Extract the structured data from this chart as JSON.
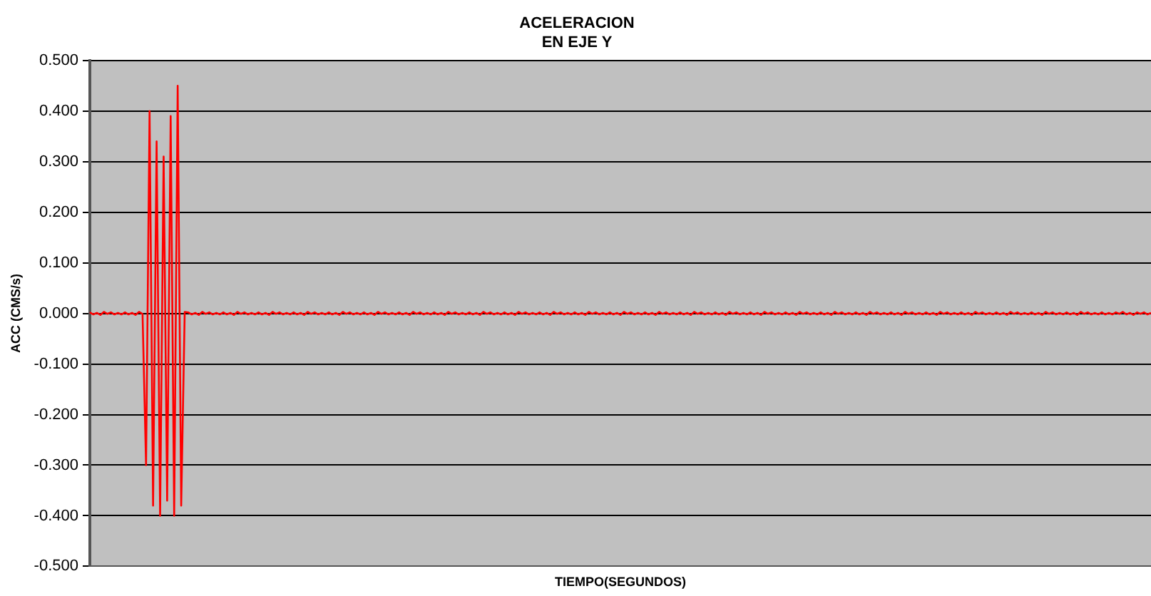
{
  "chart_data": {
    "type": "line",
    "title": "ACELERACION\nEN EJE Y",
    "xlabel": "TIEMPO(SEGUNDOS)",
    "ylabel": "ACC (CMS/s)",
    "categories": [
      null,
      null,
      null,
      null,
      null,
      null,
      null,
      null,
      null,
      null,
      null,
      null,
      null,
      null,
      null,
      null,
      null,
      null,
      null,
      null,
      null,
      null,
      null,
      null,
      null,
      null,
      null,
      null,
      null,
      null,
      null,
      null,
      null,
      null,
      null,
      null,
      null,
      null,
      null,
      null,
      null,
      null,
      null,
      null,
      null,
      null,
      null,
      null,
      null,
      null,
      null,
      null,
      null,
      null,
      null,
      null,
      null,
      null,
      null,
      null,
      null,
      null,
      null,
      null,
      null,
      null,
      null,
      null,
      null,
      null,
      null,
      null,
      null,
      null,
      null,
      null,
      null,
      null,
      null,
      null,
      null,
      null,
      null,
      null,
      null,
      null,
      null,
      null,
      null,
      null,
      null,
      null,
      null,
      null,
      null,
      null,
      null,
      null,
      null,
      null,
      null,
      null,
      null,
      null,
      null,
      null,
      null,
      null,
      null,
      null,
      null,
      null,
      null,
      null,
      null,
      null,
      null,
      null,
      null,
      null,
      null,
      null,
      null,
      null,
      null,
      null,
      null,
      null,
      null,
      null,
      null,
      null,
      null,
      null,
      null,
      null,
      null,
      null,
      null,
      null,
      null,
      null,
      null,
      null,
      null,
      null,
      null,
      null,
      null,
      null,
      null,
      null,
      null,
      null,
      null,
      null,
      null,
      null,
      null,
      null,
      null,
      null,
      null,
      null,
      null,
      null,
      null,
      null,
      null,
      null,
      null,
      null,
      null,
      null,
      null,
      null,
      null,
      null,
      null,
      null,
      null,
      null,
      null,
      null,
      null,
      null,
      null,
      null,
      null,
      null,
      null,
      null,
      null,
      null,
      null,
      null,
      null,
      null,
      null,
      null,
      null,
      null,
      null,
      null,
      null,
      null,
      null,
      null,
      null,
      null,
      null,
      null,
      null,
      null,
      null,
      null,
      null,
      null,
      null,
      null,
      null,
      null,
      null,
      null,
      null,
      null,
      null,
      null,
      null,
      null,
      null,
      null,
      null,
      null,
      null,
      null,
      null,
      null,
      null,
      null,
      null,
      null,
      null,
      null,
      null,
      null,
      null,
      null,
      null,
      null,
      null,
      null,
      null,
      null,
      null,
      null,
      null,
      null,
      null,
      null,
      null,
      null,
      null,
      null,
      null,
      null,
      null,
      null,
      null,
      null,
      null,
      null,
      null,
      null,
      null,
      null,
      null,
      null,
      null,
      null,
      null,
      null,
      null,
      null,
      null,
      null,
      null,
      null,
      null,
      null,
      null,
      null,
      null,
      null,
      null,
      null,
      null,
      null,
      null,
      null,
      null,
      null,
      null
    ],
    "series": [
      {
        "color": "#ff0000",
        "values": [
          0.002,
          -0.002,
          0.001,
          -0.003,
          0.003,
          -0.001,
          0.002,
          -0.002,
          0.001,
          -0.002,
          0.002,
          -0.002,
          0.001,
          -0.003,
          0.003,
          -0.001,
          -0.3,
          0.4,
          -0.38,
          0.34,
          -0.4,
          0.31,
          -0.37,
          0.39,
          -0.4,
          0.45,
          -0.38,
          0.003,
          0.002,
          -0.002,
          0.001,
          -0.003,
          0.003,
          -0.001,
          0.002,
          -0.002,
          0.001,
          -0.002,
          0.002,
          -0.002,
          0.001,
          -0.003,
          0.003,
          -0.001,
          0.002,
          -0.002,
          0.001,
          -0.002,
          0.002,
          -0.002,
          0.001,
          -0.003,
          0.003,
          -0.001,
          0.002,
          -0.002,
          0.001,
          -0.002,
          0.002,
          -0.002,
          0.001,
          -0.003,
          0.003,
          -0.001,
          0.002,
          -0.002,
          0.001,
          -0.002,
          0.002,
          -0.002,
          0.001,
          -0.003,
          0.003,
          -0.001,
          0.002,
          -0.002,
          0.001,
          -0.002,
          0.002,
          -0.002,
          0.001,
          -0.003,
          0.003,
          -0.001,
          0.002,
          -0.002,
          0.001,
          -0.002,
          0.002,
          -0.002,
          0.001,
          -0.003,
          0.003,
          -0.001,
          0.002,
          -0.002,
          0.001,
          -0.002,
          0.002,
          -0.002,
          0.001,
          -0.003,
          0.003,
          -0.001,
          0.002,
          -0.002,
          0.001,
          -0.002,
          0.002,
          -0.002,
          0.001,
          -0.003,
          0.003,
          -0.001,
          0.002,
          -0.002,
          0.001,
          -0.002,
          0.002,
          -0.002,
          0.001,
          -0.003,
          0.003,
          -0.001,
          0.002,
          -0.002,
          0.001,
          -0.002,
          0.002,
          -0.002,
          0.001,
          -0.003,
          0.003,
          -0.001,
          0.002,
          -0.002,
          0.001,
          -0.002,
          0.002,
          -0.002,
          0.001,
          -0.003,
          0.003,
          -0.001,
          0.002,
          -0.002,
          0.001,
          -0.002,
          0.002,
          -0.002,
          0.001,
          -0.003,
          0.003,
          -0.001,
          0.002,
          -0.002,
          0.001,
          -0.002,
          0.002,
          -0.002,
          0.001,
          -0.003,
          0.003,
          -0.001,
          0.002,
          -0.002,
          0.001,
          -0.002,
          0.002,
          -0.002,
          0.001,
          -0.003,
          0.003,
          -0.001,
          0.002,
          -0.002,
          0.001,
          -0.002,
          0.002,
          -0.002,
          0.001,
          -0.003,
          0.003,
          -0.001,
          0.002,
          -0.002,
          0.001,
          -0.002,
          0.002,
          -0.002,
          0.001,
          -0.003,
          0.003,
          -0.001,
          0.002,
          -0.002,
          0.001,
          -0.002,
          0.002,
          -0.002,
          0.001,
          -0.003,
          0.003,
          -0.001,
          0.002,
          -0.002,
          0.001,
          -0.002,
          0.002,
          -0.002,
          0.001,
          -0.003,
          0.003,
          -0.001,
          0.002,
          -0.002,
          0.001,
          -0.002,
          0.002,
          -0.002,
          0.001,
          -0.003,
          0.003,
          -0.001,
          0.002,
          -0.002,
          0.001,
          -0.002,
          0.002,
          -0.002,
          0.001,
          -0.003,
          0.003,
          -0.001,
          0.002,
          -0.002,
          0.001,
          -0.002,
          0.002,
          -0.002,
          0.001,
          -0.003,
          0.003,
          -0.001,
          0.002,
          -0.002,
          0.001,
          -0.002,
          0.002,
          -0.002,
          0.001,
          -0.003,
          0.003,
          -0.001,
          0.002,
          -0.002,
          0.001,
          -0.002,
          0.002,
          -0.002,
          0.001,
          -0.003,
          0.003,
          -0.001,
          0.002,
          -0.002,
          0.001,
          -0.002,
          0.002,
          -0.002,
          0.001,
          -0.003,
          0.003,
          -0.001,
          0.002,
          -0.002,
          0.001,
          -0.002,
          0.002,
          -0.002,
          0.001,
          -0.003,
          0.003,
          -0.001,
          0.002,
          -0.002,
          0.001,
          -0.002,
          0.002,
          -0.002,
          0.001,
          -0.002,
          0.002,
          -0.001,
          0.003,
          -0.002,
          0.001,
          -0.003,
          0.002,
          -0.001,
          0.002,
          -0.002,
          0.001
        ]
      }
    ],
    "ylim": [
      -0.5,
      0.5
    ],
    "yticks": [
      {
        "value": -0.5,
        "label": "-0.500"
      },
      {
        "value": -0.4,
        "label": "-0.400"
      },
      {
        "value": -0.3,
        "label": "-0.300"
      },
      {
        "value": -0.2,
        "label": "-0.200"
      },
      {
        "value": -0.1,
        "label": "-0.100"
      },
      {
        "value": 0,
        "label": "0.000"
      },
      {
        "value": 0.1,
        "label": "0.100"
      },
      {
        "value": 0.2,
        "label": "0.200"
      },
      {
        "value": 0.3,
        "label": "0.300"
      },
      {
        "value": 0.4,
        "label": "0.400"
      },
      {
        "value": 0.5,
        "label": "0.500"
      }
    ],
    "grid": "y",
    "marker": "none",
    "line_style": "solid",
    "tick_labels": "y",
    "legend": false
  }
}
